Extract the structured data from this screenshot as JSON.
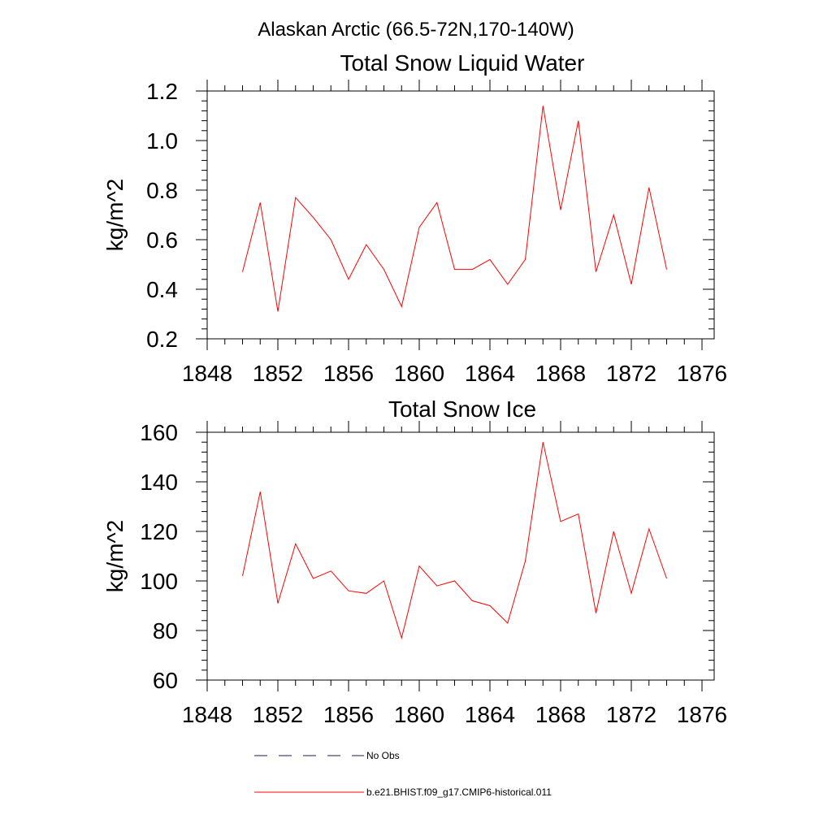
{
  "figure": {
    "title": "Alaskan Arctic (66.5-72N,170-140W)"
  },
  "chart_data": [
    {
      "type": "line",
      "title": "Total Snow Liquid Water",
      "xlabel": "",
      "ylabel": "kg/m^2",
      "xlim": [
        1848,
        1876
      ],
      "ylim": [
        0.2,
        1.2
      ],
      "xticks": [
        "1848",
        "1852",
        "1856",
        "1860",
        "1864",
        "1868",
        "1872",
        "1876"
      ],
      "yticks": [
        "0.2",
        "0.4",
        "0.6",
        "0.8",
        "1.0",
        "1.2"
      ],
      "grid": false,
      "x": [
        1850,
        1851,
        1852,
        1853,
        1854,
        1855,
        1856,
        1857,
        1858,
        1859,
        1860,
        1861,
        1862,
        1863,
        1864,
        1865,
        1866,
        1867,
        1868,
        1869,
        1870,
        1871,
        1872,
        1873,
        1874
      ],
      "series": [
        {
          "name": "b.e21.BHIST.f09_g17.CMIP6-historical.011",
          "color": "#ff0000",
          "values": [
            0.47,
            0.75,
            0.31,
            0.77,
            0.69,
            0.6,
            0.44,
            0.58,
            0.48,
            0.33,
            0.65,
            0.75,
            0.48,
            0.48,
            0.52,
            0.42,
            0.52,
            1.14,
            0.72,
            1.08,
            0.47,
            0.7,
            0.42,
            0.81,
            0.48
          ]
        }
      ]
    },
    {
      "type": "line",
      "title": "Total Snow Ice",
      "xlabel": "",
      "ylabel": "kg/m^2",
      "xlim": [
        1848,
        1876
      ],
      "ylim": [
        60,
        160
      ],
      "xticks": [
        "1848",
        "1852",
        "1856",
        "1860",
        "1864",
        "1868",
        "1872",
        "1876"
      ],
      "yticks": [
        "60",
        "80",
        "100",
        "120",
        "140",
        "160"
      ],
      "grid": false,
      "x": [
        1850,
        1851,
        1852,
        1853,
        1854,
        1855,
        1856,
        1857,
        1858,
        1859,
        1860,
        1861,
        1862,
        1863,
        1864,
        1865,
        1866,
        1867,
        1868,
        1869,
        1870,
        1871,
        1872,
        1873,
        1874
      ],
      "series": [
        {
          "name": "b.e21.BHIST.f09_g17.CMIP6-historical.011",
          "color": "#ff0000",
          "values": [
            102,
            136,
            91,
            115,
            101,
            104,
            96,
            95,
            100,
            77,
            106,
            98,
            100,
            92,
            90,
            83,
            108,
            156,
            124,
            127,
            87,
            120,
            95,
            121,
            101
          ]
        }
      ]
    }
  ],
  "legend": {
    "placement": "bottom",
    "items": [
      {
        "label": "No Obs",
        "style": "dashed",
        "color": "#1a1a4d"
      },
      {
        "label": "b.e21.BHIST.f09_g17.CMIP6-historical.011",
        "style": "solid",
        "color": "#ff0000"
      }
    ]
  }
}
